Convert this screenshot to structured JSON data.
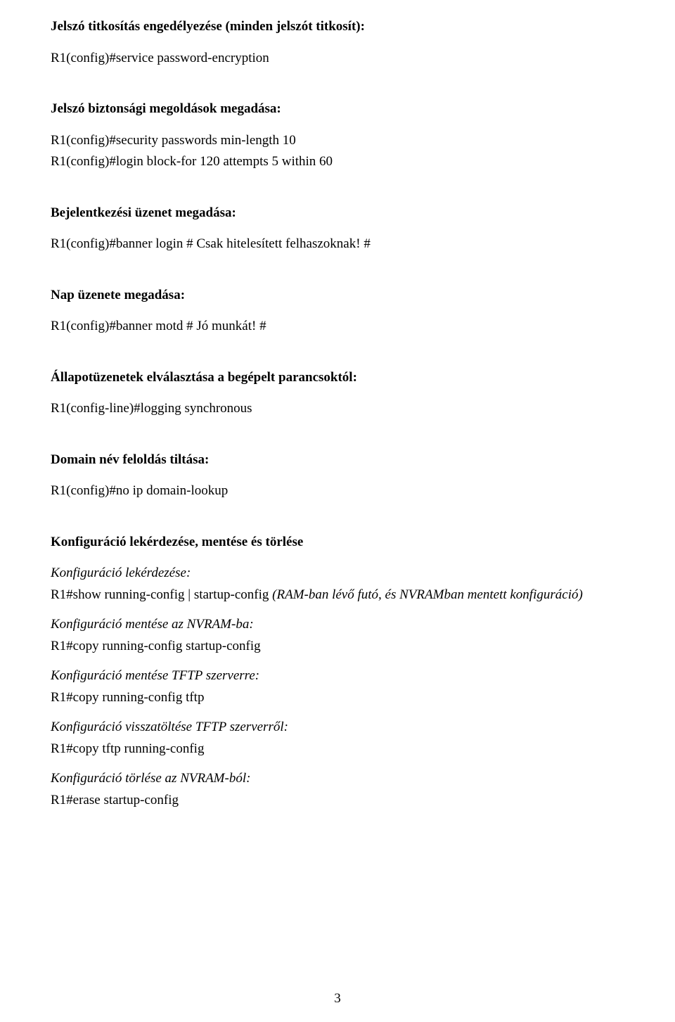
{
  "page_number": "3",
  "sections": [
    {
      "heading": "Jelszó titkosítás engedélyezése (minden jelszót titkosít):",
      "lines": [
        "R1(config)#service password-encryption"
      ]
    },
    {
      "heading": "Jelszó biztonsági megoldások megadása:",
      "lines": [
        "R1(config)#security passwords min-length 10",
        "R1(config)#login block-for 120 attempts 5 within 60"
      ]
    },
    {
      "heading": "Bejelentkezési üzenet megadása:",
      "lines": [
        "R1(config)#banner login # Csak hitelesített felhaszoknak! #"
      ]
    },
    {
      "heading": "Nap üzenete megadása:",
      "lines": [
        "R1(config)#banner motd # Jó munkát! #"
      ]
    },
    {
      "heading": "Állapotüzenetek elválasztása a begépelt parancsoktól:",
      "lines": [
        "R1(config-line)#logging synchronous"
      ]
    },
    {
      "heading": "Domain név feloldás tiltása:",
      "lines": [
        "R1(config)#no ip domain-lookup"
      ]
    }
  ],
  "config_section": {
    "heading": "Konfiguráció lekérdezése, mentése és törlése",
    "groups": [
      {
        "label": "Konfiguráció lekérdezése:",
        "cmd_prefix": "R1#show running-config | startup-config ",
        "cmd_italic": "(RAM-ban lévő futó, és NVRAMban mentett konfiguráció)"
      },
      {
        "label": "Konfiguráció mentése az NVRAM-ba:",
        "cmd": "R1#copy running-config startup-config"
      },
      {
        "label": "Konfiguráció mentése TFTP szerverre:",
        "cmd": "R1#copy running-config tftp"
      },
      {
        "label": "Konfiguráció visszatöltése TFTP szerverről:",
        "cmd": "R1#copy tftp running-config"
      },
      {
        "label": "Konfiguráció törlése az NVRAM-ból:",
        "cmd": "R1#erase startup-config"
      }
    ]
  }
}
